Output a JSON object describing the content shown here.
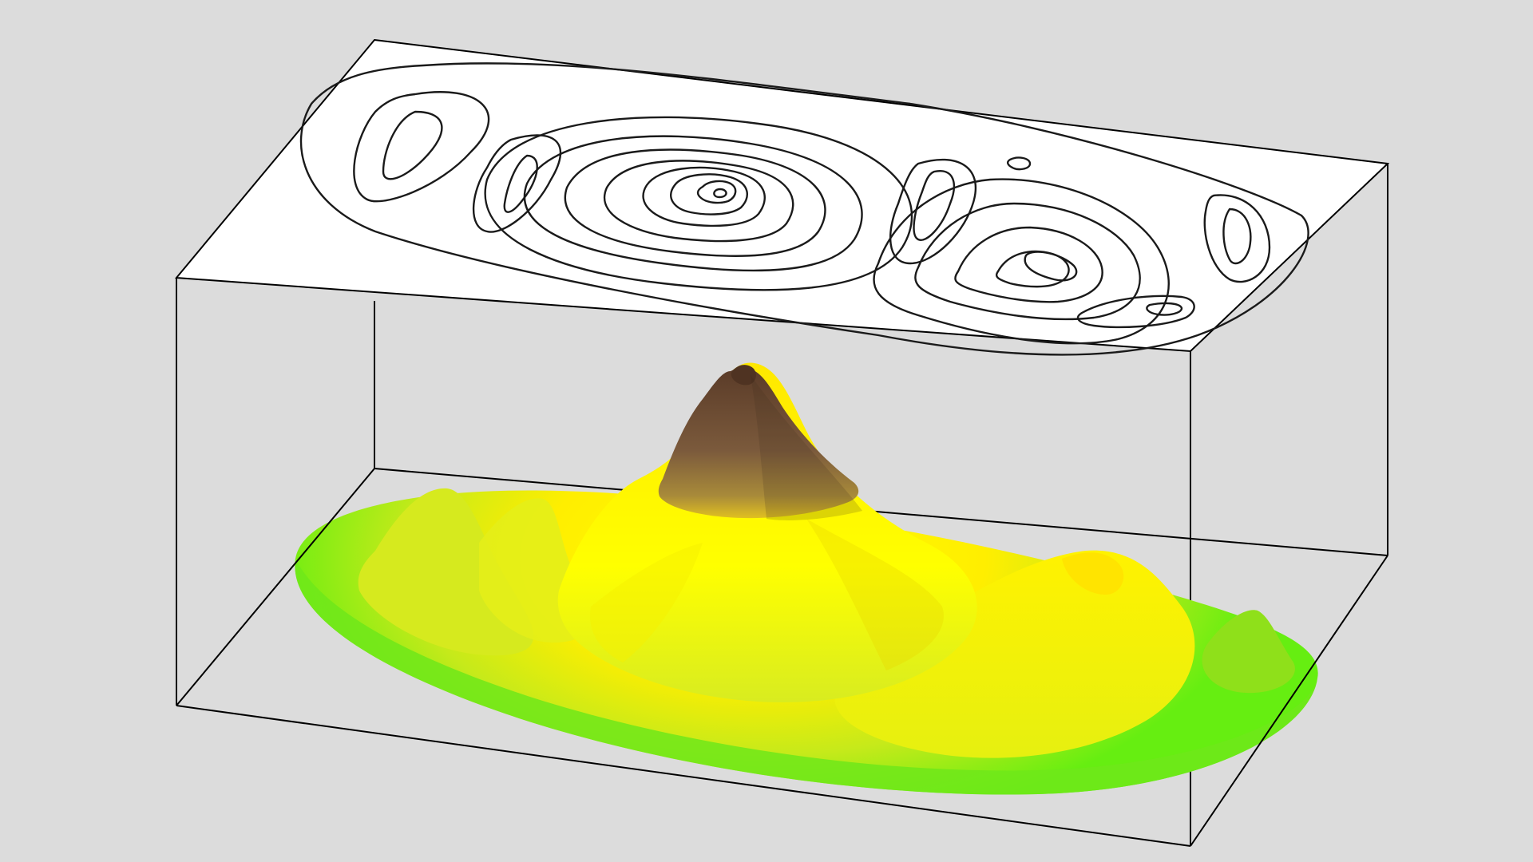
{
  "figure": {
    "colors": {
      "background": "#dcdcdc",
      "box_line": "#000000",
      "contour_line": "#1a1a1a",
      "lid_fill": "#ffffff",
      "surface_low": "#66ee11",
      "surface_mid": "#ffff00",
      "surface_high": "#6b4a33"
    },
    "elements": {
      "contour_plane": "contour-map",
      "surface": "3d-terrain-surface",
      "bounding_box": "wireframe-box"
    }
  }
}
